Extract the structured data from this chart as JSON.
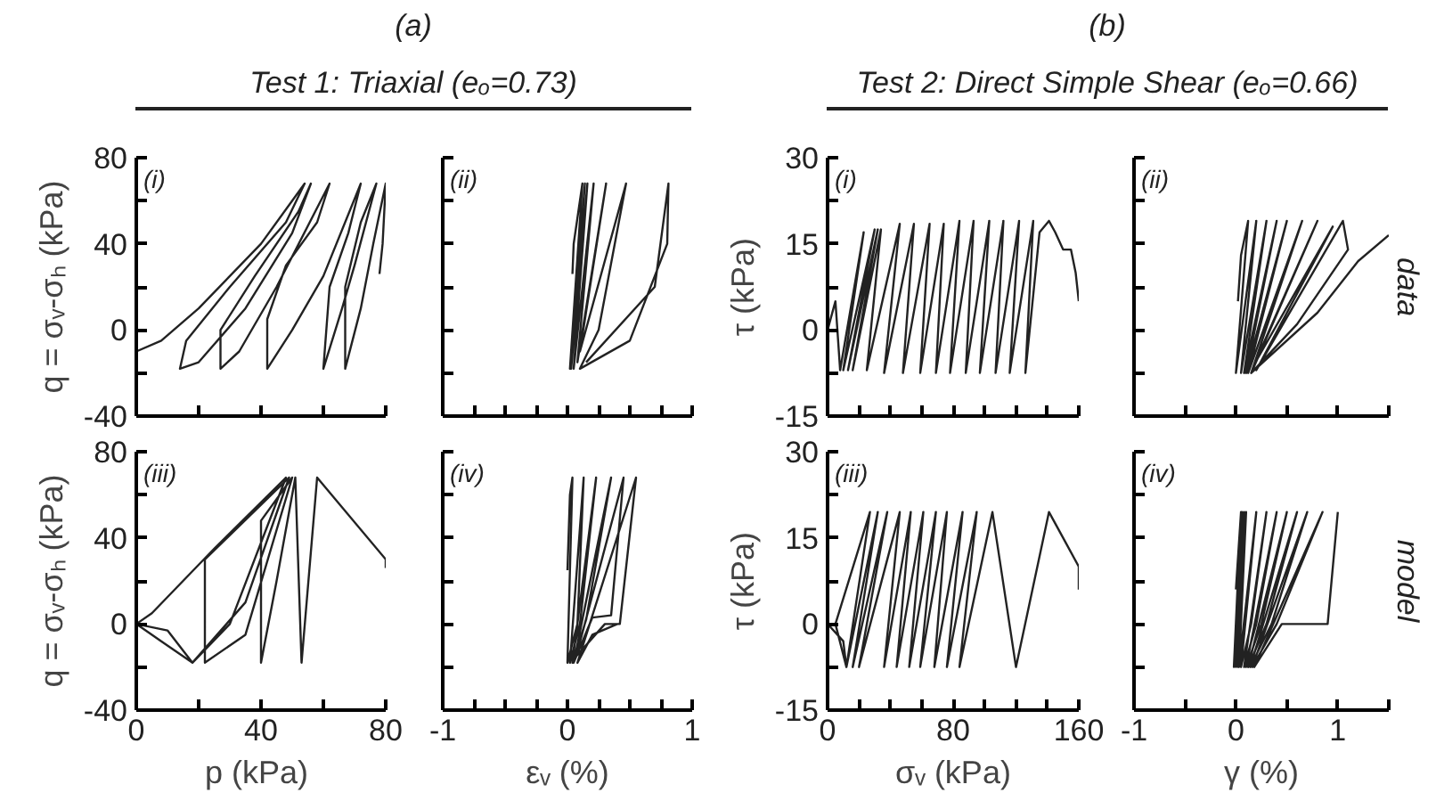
{
  "chart_data": [
    {
      "type": "line",
      "title": "(i)",
      "ylabel": "q = σᵥ-σₕ (kPa)",
      "annotations": [
        "(a)",
        "Test 1: Triaxial (eₒ=0.73)"
      ],
      "tick_labels": "y",
      "xlim": [
        0,
        80
      ],
      "xticks": [
        0,
        {
          "value": 20,
          "label": null
        },
        40,
        {
          "value": 60,
          "label": null
        },
        80
      ],
      "ylim": [
        -40,
        80
      ],
      "yticks": [
        -40,
        {
          "value": -20,
          "label": null
        },
        0,
        {
          "value": 20,
          "label": null
        },
        40,
        {
          "value": 60,
          "label": null
        },
        80
      ],
      "series": [
        {
          "color": "#222222",
          "x": [
            0,
            8,
            20,
            40,
            54,
            48,
            30,
            16,
            14,
            20,
            35,
            50,
            56,
            52,
            38,
            27,
            27,
            33,
            45,
            62,
            58,
            48,
            42,
            42,
            50,
            60,
            72,
            68,
            62,
            60,
            66,
            70,
            77,
            72,
            67,
            67,
            72,
            76,
            80,
            79,
            78
          ],
          "values": [
            -10,
            -5,
            10,
            40,
            68,
            50,
            20,
            -5,
            -18,
            -15,
            10,
            45,
            68,
            55,
            25,
            0,
            -18,
            -10,
            20,
            68,
            50,
            30,
            5,
            -18,
            0,
            25,
            68,
            45,
            20,
            -18,
            10,
            30,
            68,
            50,
            20,
            -18,
            10,
            40,
            68,
            40,
            26
          ]
        }
      ]
    },
    {
      "type": "line",
      "title": "(ii)",
      "tick_labels": false,
      "xlim": [
        -1,
        1
      ],
      "xticks": [
        -1,
        {
          "value": -0.75,
          "label": null
        },
        {
          "value": -0.5,
          "label": null
        },
        {
          "value": -0.25,
          "label": null
        },
        0,
        {
          "value": 0.25,
          "label": null
        },
        {
          "value": 0.5,
          "label": null
        },
        {
          "value": 0.75,
          "label": null
        },
        1
      ],
      "ylim": [
        -40,
        80
      ],
      "yticks": [
        -40,
        {
          "value": -20,
          "label": null
        },
        0,
        {
          "value": 20,
          "label": null
        },
        40,
        {
          "value": 60,
          "label": null
        },
        80
      ],
      "series": [
        {
          "color": "#222222",
          "x": [
            0.04,
            0.05,
            0.12,
            0.02,
            0.14,
            0.03,
            0.16,
            0.05,
            0.21,
            0.08,
            0.31,
            0.1,
            0.47,
            0.25,
            0.1,
            0.5,
            0.8,
            0.81,
            0.7,
            0.15
          ],
          "values": [
            26,
            40,
            68,
            -18,
            68,
            -18,
            68,
            -18,
            68,
            -15,
            68,
            -10,
            68,
            0,
            -18,
            -5,
            40,
            68,
            20,
            -15
          ]
        }
      ]
    },
    {
      "type": "line",
      "title": "(i)",
      "ylabel": "τ (kPa)",
      "annotations": [
        "(b)",
        "Test 2: Direct Simple Shear (eₒ=0.66)"
      ],
      "tick_labels": "y",
      "xlim": [
        0,
        160
      ],
      "xticks": [
        0,
        {
          "value": 20,
          "label": null
        },
        {
          "value": 40,
          "label": null
        },
        {
          "value": 60,
          "label": null
        },
        80,
        {
          "value": 100,
          "label": null
        },
        {
          "value": 120,
          "label": null
        },
        {
          "value": 140,
          "label": null
        },
        160
      ],
      "ylim": [
        -15,
        30
      ],
      "yticks": [
        -15,
        {
          "value": -7.5,
          "label": null
        },
        0,
        {
          "value": 7.5,
          "label": null
        },
        15,
        {
          "value": 22.5,
          "label": null
        },
        30
      ],
      "series": [
        {
          "color": "#222222",
          "x": [
            0,
            5,
            8,
            23,
            10,
            30,
            13,
            32,
            16,
            34,
            25,
            46,
            36,
            55,
            48,
            65,
            59,
            74,
            69,
            84,
            78,
            93,
            88,
            103,
            97,
            112,
            107,
            122,
            116,
            131,
            126,
            135,
            141,
            145,
            150,
            155,
            158,
            160
          ],
          "values": [
            0,
            5,
            -7,
            17,
            -7,
            17.5,
            -7,
            17.5,
            -7,
            17.5,
            -7,
            18.5,
            -7.5,
            18.5,
            -7.5,
            18.5,
            -7.5,
            18.5,
            -7.5,
            19,
            -7.5,
            19,
            -7.5,
            19,
            -7.5,
            19,
            -7.5,
            19,
            -7.5,
            19,
            -7.5,
            17,
            19,
            17,
            14,
            14,
            10,
            5
          ]
        }
      ]
    },
    {
      "type": "line",
      "title": "(ii)",
      "annotations": [
        "data"
      ],
      "tick_labels": false,
      "xlim": [
        -1,
        1.5
      ],
      "xticks": [
        -1,
        {
          "value": -0.5,
          "label": null
        },
        0,
        {
          "value": 0.5,
          "label": null
        },
        1,
        {
          "value": 1.5,
          "label": null
        }
      ],
      "ylim": [
        -15,
        30
      ],
      "yticks": [
        -15,
        {
          "value": -7.5,
          "label": null
        },
        0,
        {
          "value": 7.5,
          "label": null
        },
        15,
        {
          "value": 22.5,
          "label": null
        },
        30
      ],
      "series": [
        {
          "color": "#222222",
          "x": [
            0.02,
            0.05,
            0.12,
            0,
            0.2,
            0.05,
            0.3,
            0.08,
            0.4,
            0.1,
            0.5,
            0.12,
            0.65,
            0.15,
            0.8,
            0.18,
            0.95,
            0.2,
            1.05,
            1.1,
            0.6,
            0.15,
            0.8,
            1.2,
            1.5
          ],
          "values": [
            5,
            13,
            19,
            -7.5,
            19,
            -7.5,
            19,
            -7.5,
            19,
            -7.5,
            19,
            -7.5,
            19,
            -7.5,
            19,
            -6,
            18,
            -7,
            19,
            14,
            1,
            -7.5,
            3,
            12,
            16.5
          ]
        }
      ]
    },
    {
      "type": "line",
      "title": "(iii)",
      "xlabel": "p  (kPa)",
      "ylabel": "q = σᵥ-σₕ (kPa)",
      "xlim": [
        0,
        80
      ],
      "xticks": [
        0,
        {
          "value": 20,
          "label": null
        },
        40,
        {
          "value": 60,
          "label": null
        },
        80
      ],
      "ylim": [
        -40,
        80
      ],
      "yticks": [
        -40,
        {
          "value": -20,
          "label": null
        },
        0,
        {
          "value": 20,
          "label": null
        },
        40,
        {
          "value": 60,
          "label": null
        },
        80
      ],
      "series": [
        {
          "color": "#222222",
          "x": [
            0,
            10,
            18,
            30,
            48,
            25,
            5,
            0,
            8,
            18,
            35,
            49,
            22,
            22,
            35,
            50,
            40,
            40,
            45,
            51,
            53,
            58,
            80,
            80
          ],
          "values": [
            0,
            -3,
            -18,
            0,
            68,
            35,
            5,
            0,
            -8,
            -18,
            10,
            68,
            30,
            -18,
            -5,
            68,
            48,
            -18,
            20,
            68,
            -18,
            68,
            30,
            26
          ]
        }
      ]
    },
    {
      "type": "line",
      "title": "(iv)",
      "xlabel": "εᵥ (%)",
      "tick_labels": "x",
      "xlim": [
        -1,
        1
      ],
      "xticks": [
        -1,
        {
          "value": -0.75,
          "label": null
        },
        {
          "value": -0.5,
          "label": null
        },
        {
          "value": -0.25,
          "label": null
        },
        0,
        {
          "value": 0.25,
          "label": null
        },
        {
          "value": 0.5,
          "label": null
        },
        {
          "value": 0.75,
          "label": null
        },
        1
      ],
      "ylim": [
        -40,
        80
      ],
      "yticks": [
        -40,
        {
          "value": -20,
          "label": null
        },
        0,
        {
          "value": 20,
          "label": null
        },
        40,
        {
          "value": 60,
          "label": null
        },
        80
      ],
      "series": [
        {
          "color": "#222222",
          "x": [
            0,
            0.02,
            0.04,
            0,
            0.08,
            0.13,
            0.02,
            0.1,
            0.23,
            0.04,
            0.15,
            0.35,
            0.05,
            0.2,
            0.35,
            0.45,
            0.07,
            0.3,
            0.42,
            0.55,
            0.08,
            0.2,
            0.4
          ],
          "values": [
            25,
            60,
            68,
            -18,
            0,
            68,
            -18,
            0,
            68,
            -18,
            2,
            68,
            -18,
            3,
            4,
            68,
            -15,
            0,
            0,
            68,
            -18,
            -5,
            0
          ]
        }
      ]
    },
    {
      "type": "line",
      "title": "(iii)",
      "xlabel": "σᵥ (kPa)",
      "ylabel": "τ (kPa)",
      "xlim": [
        0,
        160
      ],
      "xticks": [
        0,
        {
          "value": 20,
          "label": null
        },
        {
          "value": 40,
          "label": null
        },
        {
          "value": 60,
          "label": null
        },
        80,
        {
          "value": 100,
          "label": null
        },
        {
          "value": 120,
          "label": null
        },
        {
          "value": 140,
          "label": null
        },
        160
      ],
      "ylim": [
        -15,
        30
      ],
      "yticks": [
        -15,
        {
          "value": -7.5,
          "label": null
        },
        0,
        {
          "value": 7.5,
          "label": null
        },
        15,
        {
          "value": 22.5,
          "label": null
        },
        30
      ],
      "series": [
        {
          "color": "#222222",
          "x": [
            0,
            10,
            12,
            27,
            5,
            12,
            32,
            16,
            38,
            20,
            46,
            36,
            53,
            44,
            61,
            52,
            69,
            59,
            76,
            68,
            86,
            76,
            95,
            84,
            105,
            120,
            141,
            150,
            160,
            160
          ],
          "values": [
            0,
            -3,
            -7.5,
            19.5,
            0,
            -7.5,
            19.5,
            -7.5,
            19.5,
            -7.5,
            19.5,
            -7.5,
            19.5,
            -7.5,
            19.5,
            -7.5,
            19.5,
            -7.5,
            19.5,
            -7.5,
            19.5,
            -7.5,
            19.5,
            -7.5,
            19.5,
            -7.5,
            19.5,
            15,
            10,
            6
          ]
        }
      ]
    },
    {
      "type": "line",
      "title": "(iv)",
      "xlabel": "γ (%)",
      "annotations": [
        "model"
      ],
      "tick_labels": "x",
      "xlim": [
        -1,
        1.5
      ],
      "xticks": [
        -1,
        {
          "value": -0.5,
          "label": null
        },
        0,
        {
          "value": 0.5,
          "label": null
        },
        1,
        {
          "value": 1.5,
          "label": null
        }
      ],
      "ylim": [
        -15,
        30
      ],
      "yticks": [
        -15,
        {
          "value": -7.5,
          "label": null
        },
        0,
        {
          "value": 7.5,
          "label": null
        },
        15,
        {
          "value": 22.5,
          "label": null
        },
        30
      ],
      "series": [
        {
          "color": "#222222",
          "x": [
            0,
            0.05,
            -0.02,
            0.06,
            0,
            0.08,
            0.02,
            0.1,
            0.03,
            0.2,
            0.05,
            0.15,
            0.3,
            0.08,
            0.2,
            0.4,
            0.1,
            0.25,
            0.5,
            0.12,
            0.3,
            0.6,
            0.14,
            0.35,
            0.7,
            0.16,
            0.4,
            0.85,
            0.18,
            0.45,
            0.9,
            1.0
          ],
          "values": [
            6,
            19.5,
            -7.5,
            19.5,
            -7.5,
            19.5,
            -7.5,
            19.5,
            -7.5,
            19.5,
            -7.5,
            0,
            19.5,
            -7.5,
            0,
            19.5,
            -7.5,
            0,
            19.5,
            -7.5,
            0,
            19.5,
            -7.5,
            0,
            19.5,
            -7.5,
            0,
            19.5,
            -7.5,
            0,
            0,
            19.5
          ]
        }
      ]
    }
  ]
}
